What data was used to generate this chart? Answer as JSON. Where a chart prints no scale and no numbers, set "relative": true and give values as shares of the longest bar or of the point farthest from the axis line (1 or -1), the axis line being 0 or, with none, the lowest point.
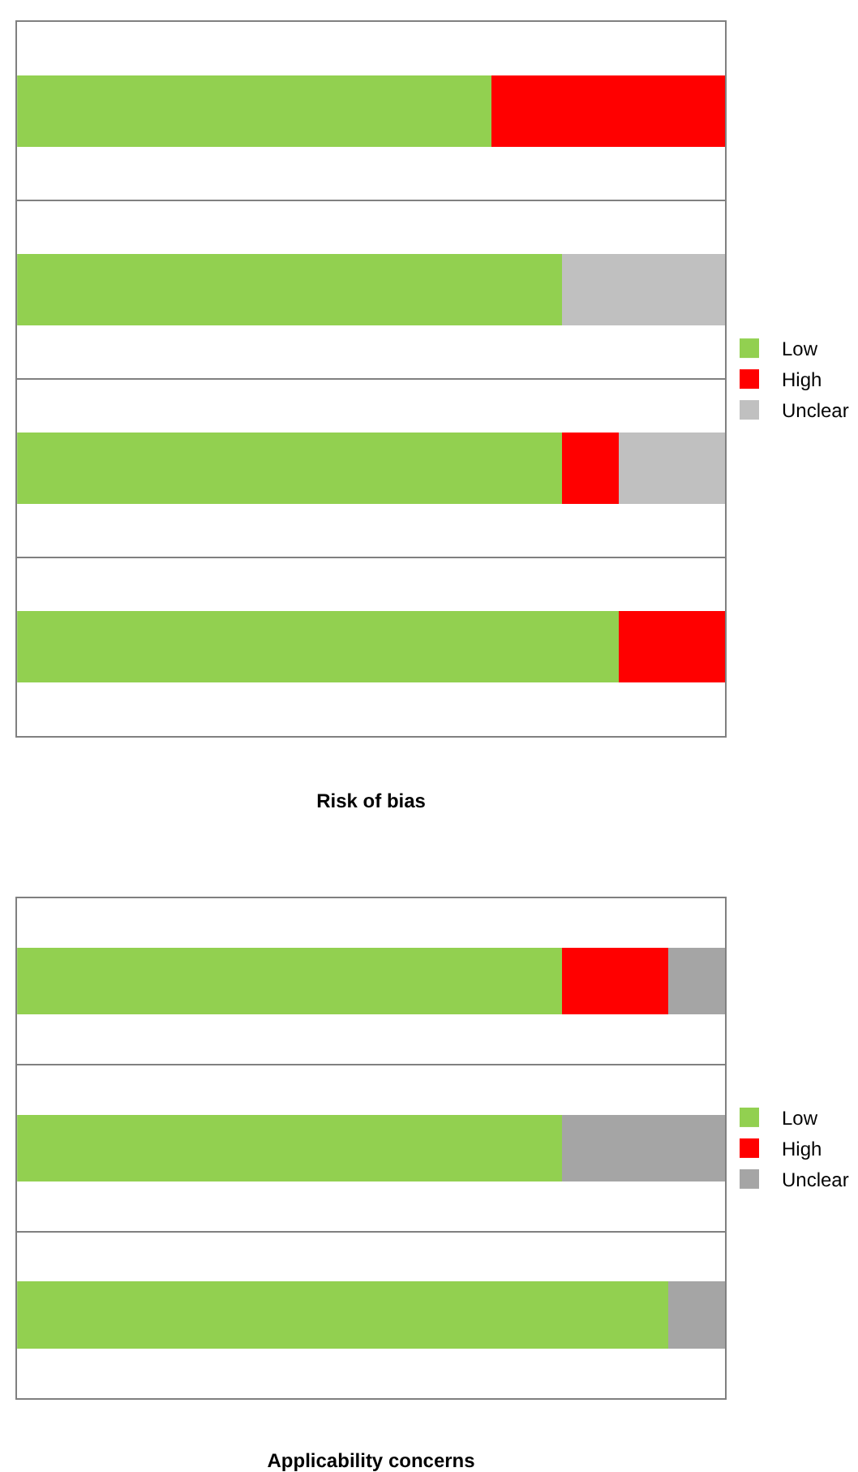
{
  "chart_data": [
    {
      "type": "bar",
      "orientation": "horizontal",
      "stacked": true,
      "relative": true,
      "xlabel": "Risk of bias",
      "categories": [
        null,
        null,
        null,
        null
      ],
      "legend": "right",
      "grid": "y",
      "series": [
        {
          "name": "Low",
          "color": "#92d050",
          "values": [
            0.67,
            0.77,
            0.77,
            0.85
          ]
        },
        {
          "name": "High",
          "color": "#ff0000",
          "values": [
            0.33,
            null,
            0.08,
            0.15
          ]
        },
        {
          "name": "Unclear",
          "color": "#c0c0c0",
          "values": [
            null,
            0.23,
            0.15,
            null
          ]
        }
      ]
    },
    {
      "type": "bar",
      "orientation": "horizontal",
      "stacked": true,
      "relative": true,
      "xlabel": "Applicability concerns",
      "categories": [
        null,
        null,
        null
      ],
      "legend": "right",
      "grid": "y",
      "series": [
        {
          "name": "Low",
          "color": "#92d050",
          "values": [
            0.77,
            0.77,
            0.92
          ]
        },
        {
          "name": "High",
          "color": "#ff0000",
          "values": [
            0.15,
            null,
            null
          ]
        },
        {
          "name": "Unclear",
          "color": "#a5a5a5",
          "values": [
            0.08,
            0.23,
            0.08
          ]
        }
      ]
    }
  ]
}
